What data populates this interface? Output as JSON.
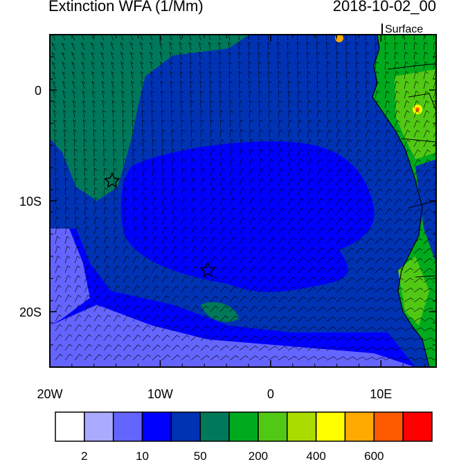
{
  "header": {
    "title": "Extinction WFA (1/Mm)",
    "date": "2018-10-02_00",
    "level": "Surface"
  },
  "map": {
    "xlim": [
      -20,
      15
    ],
    "ylim": [
      -25,
      5
    ],
    "xticks": [
      {
        "value": -20,
        "label": "20W"
      },
      {
        "value": -10,
        "label": "10W"
      },
      0,
      {
        "value": 10,
        "label": "10E"
      }
    ],
    "yticks": [
      0,
      {
        "value": -10,
        "label": "10S"
      },
      {
        "value": -20,
        "label": "20S"
      }
    ]
  },
  "colorbar": {
    "colors": [
      "#ffffff",
      "#aaaaff",
      "#6464ff",
      "#0000ff",
      "#0032b4",
      "#00785a",
      "#00aa1e",
      "#50c814",
      "#aadc00",
      "#ffff00",
      "#ffaa00",
      "#ff5a00",
      "#ff0000"
    ],
    "labels": [
      2,
      10,
      50,
      200,
      400,
      600
    ]
  }
}
